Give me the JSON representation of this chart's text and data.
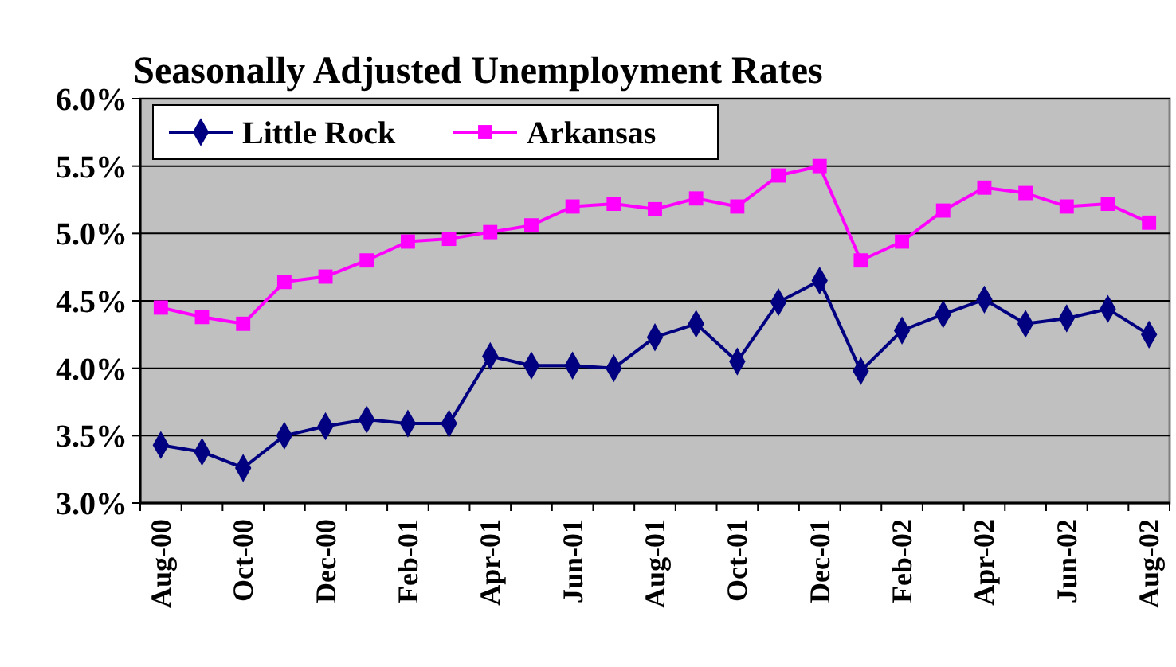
{
  "chart_data": {
    "type": "line",
    "title": "Seasonally Adjusted Unemployment Rates",
    "categories": [
      "Aug-00",
      null,
      "Oct-00",
      null,
      "Dec-00",
      null,
      "Feb-01",
      null,
      "Apr-01",
      null,
      "Jun-01",
      null,
      "Aug-01",
      null,
      "Oct-01",
      null,
      "Dec-01",
      null,
      "Feb-02",
      null,
      "Apr-02",
      null,
      "Jun-02",
      null,
      "Aug-02"
    ],
    "series": [
      {
        "name": "Little Rock",
        "color": "#000080",
        "marker": "diamond",
        "values": [
          3.43,
          3.38,
          3.26,
          3.5,
          3.57,
          3.62,
          3.59,
          3.59,
          4.09,
          4.02,
          4.02,
          4.0,
          4.23,
          4.33,
          4.05,
          4.49,
          4.65,
          3.98,
          4.28,
          4.4,
          4.51,
          4.33,
          4.37,
          4.44,
          4.25
        ]
      },
      {
        "name": "Arkansas",
        "color": "#ff00ff",
        "marker": "square",
        "values": [
          4.45,
          4.38,
          4.33,
          4.64,
          4.68,
          4.8,
          4.94,
          4.96,
          5.01,
          5.06,
          5.2,
          5.22,
          5.18,
          5.26,
          5.2,
          5.43,
          5.5,
          4.8,
          4.94,
          5.17,
          5.34,
          5.3,
          5.2,
          5.22,
          5.08
        ]
      }
    ],
    "ylim": [
      3,
      6
    ],
    "yticks": [
      {
        "value": 3,
        "label": "3.0%"
      },
      {
        "value": 3.5,
        "label": "3.5%"
      },
      {
        "value": 4,
        "label": "4.0%"
      },
      {
        "value": 4.5,
        "label": "4.5%"
      },
      {
        "value": 5,
        "label": "5.0%"
      },
      {
        "value": 5.5,
        "label": "5.5%"
      },
      {
        "value": 6,
        "label": "6.0%"
      }
    ],
    "grid": "y",
    "legend": "top left"
  }
}
